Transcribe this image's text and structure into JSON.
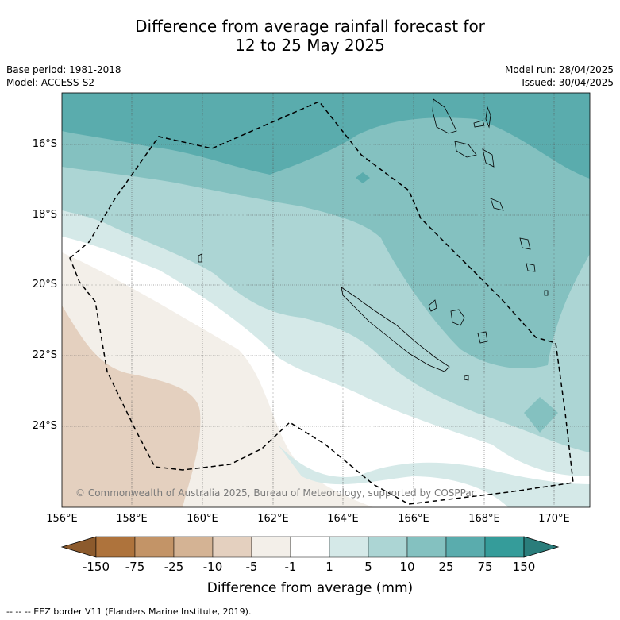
{
  "title_line1": "Difference from average rainfall forecast for",
  "title_line2": "12 to 25 May 2025",
  "base_period": "Base period: 1981-2018",
  "model": "Model: ACCESS-S2",
  "model_run": "Model run: 28/04/2025",
  "issued": "Issued: 30/04/2025",
  "copyright": "© Commonwealth of Australia 2025, Bureau of Meteorology, supported by COSPPac",
  "lat_labels": [
    "16°S",
    "18°S",
    "20°S",
    "22°S",
    "24°S"
  ],
  "lon_labels": [
    "156°E",
    "158°E",
    "160°E",
    "162°E",
    "164°E",
    "166°E",
    "168°E",
    "170°E"
  ],
  "colorbar": {
    "title": "Difference from average (mm)",
    "labels": [
      "-150",
      "-75",
      "-25",
      "-10",
      "-5",
      "-1",
      "1",
      "5",
      "10",
      "25",
      "75",
      "150"
    ],
    "colors": [
      "#8c5a2c",
      "#ae733c",
      "#c39467",
      "#d4b394",
      "#e4d0bf",
      "#f3efe9",
      "#ffffff",
      "#d5e9e8",
      "#acd5d4",
      "#84c1c0",
      "#5aacad",
      "#359c9a",
      "#2a7d7b"
    ]
  },
  "legend_note": "--  --  -- EEZ border V11 (Flanders Marine Institute, 2019)."
}
